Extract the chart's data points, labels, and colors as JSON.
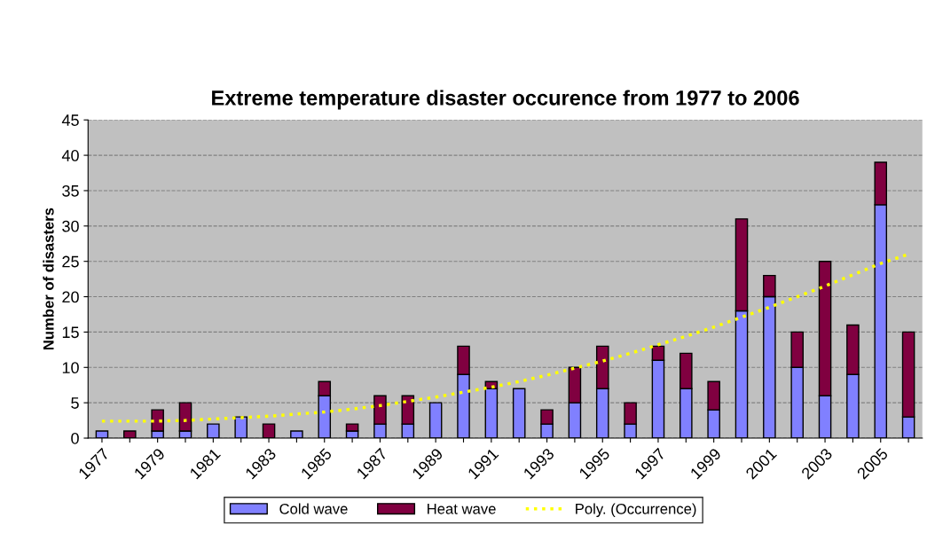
{
  "chart_data": {
    "type": "bar",
    "title": "Extreme temperature disaster occurence from 1977 to 2006",
    "ylabel": "Number of disasters",
    "categories": [
      "1977",
      null,
      "1979",
      null,
      "1981",
      null,
      "1983",
      null,
      "1985",
      null,
      "1987",
      null,
      "1989",
      null,
      "1991",
      null,
      "1993",
      null,
      "1995",
      null,
      "1997",
      null,
      "1999",
      null,
      "2001",
      null,
      "2003",
      null,
      "2005",
      null
    ],
    "stacked": true,
    "series": [
      {
        "name": "Cold wave",
        "color": "#8080ff",
        "values": [
          1,
          0,
          1,
          1,
          2,
          3,
          0,
          1,
          6,
          1,
          2,
          2,
          5,
          9,
          7,
          7,
          2,
          5,
          7,
          2,
          11,
          7,
          4,
          18,
          20,
          10,
          6,
          9,
          33,
          3
        ]
      },
      {
        "name": "Heat wave",
        "color": "#800040",
        "values": [
          0,
          1,
          3,
          4,
          0,
          0,
          2,
          0,
          2,
          1,
          4,
          4,
          0,
          4,
          1,
          0,
          2,
          5,
          6,
          3,
          2,
          5,
          4,
          13,
          3,
          5,
          19,
          7,
          6,
          12
        ]
      },
      {
        "name": "Poly. (Occurrence)",
        "type": "line",
        "line_style": "dotted",
        "color": "#ffff00",
        "values": [
          2.4,
          2.4,
          2.4,
          2.5,
          2.7,
          2.9,
          3.1,
          3.4,
          3.7,
          4.1,
          4.6,
          5.2,
          5.8,
          6.5,
          7.2,
          8.0,
          8.9,
          9.9,
          10.9,
          12.0,
          13.2,
          14.4,
          15.7,
          17.1,
          18.5,
          20.0,
          21.5,
          23.1,
          24.7,
          26.0
        ]
      }
    ],
    "ylim": [
      0,
      45
    ],
    "yticks": [
      0,
      5,
      10,
      15,
      20,
      25,
      30,
      35,
      40,
      45
    ],
    "grid": "y",
    "legend": "bottom"
  }
}
